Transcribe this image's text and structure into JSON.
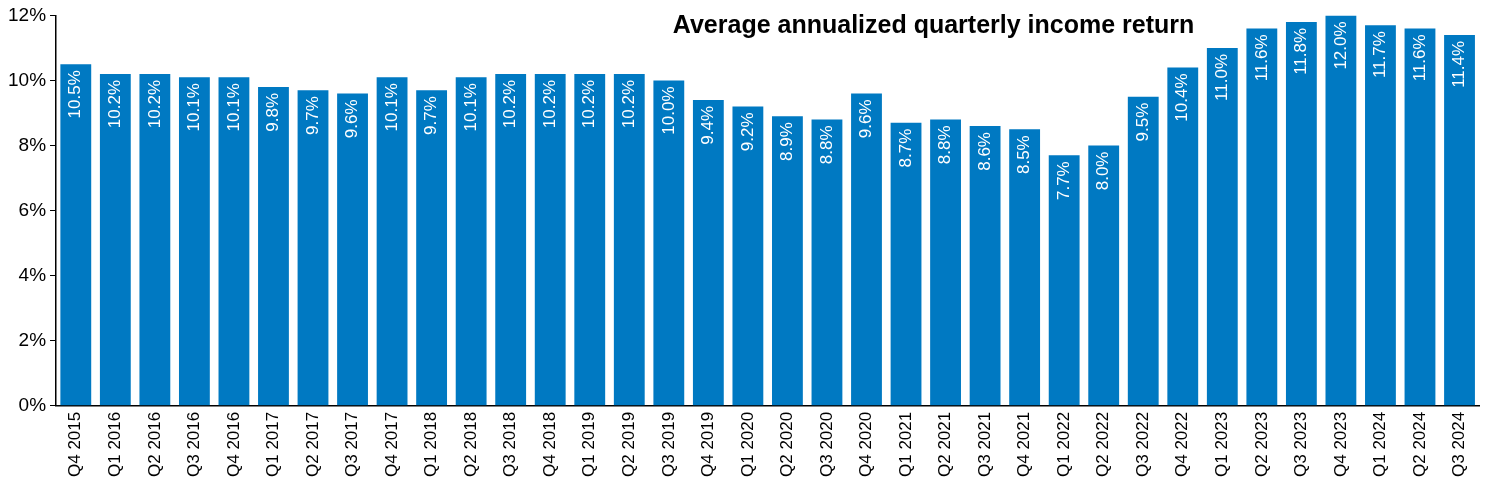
{
  "chart_data": {
    "type": "bar",
    "title": "Average annualized quarterly income return",
    "categories": [
      "Q4 2015",
      "Q1 2016",
      "Q2 2016",
      "Q3 2016",
      "Q4 2016",
      "Q1 2017",
      "Q2 2017",
      "Q3 2017",
      "Q4 2017",
      "Q1 2018",
      "Q2 2018",
      "Q3 2018",
      "Q4 2018",
      "Q1 2019",
      "Q2 2019",
      "Q3 2019",
      "Q4 2019",
      "Q1 2020",
      "Q2 2020",
      "Q3 2020",
      "Q4 2020",
      "Q1 2021",
      "Q2 2021",
      "Q3 2021",
      "Q4 2021",
      "Q1 2022",
      "Q2 2022",
      "Q3 2022",
      "Q4 2022",
      "Q1 2023",
      "Q2 2023",
      "Q3 2023",
      "Q4 2023",
      "Q1 2024",
      "Q2 2024",
      "Q3 2024"
    ],
    "values": [
      10.5,
      10.2,
      10.2,
      10.1,
      10.1,
      9.8,
      9.7,
      9.6,
      10.1,
      9.7,
      10.1,
      10.2,
      10.2,
      10.2,
      10.2,
      10.0,
      9.4,
      9.2,
      8.9,
      8.8,
      9.6,
      8.7,
      8.8,
      8.6,
      8.5,
      7.7,
      8.0,
      9.5,
      10.4,
      11.0,
      11.6,
      11.8,
      12.0,
      11.7,
      11.6,
      11.4
    ],
    "value_labels": [
      "10.5%",
      "10.2%",
      "10.2%",
      "10.1%",
      "10.1%",
      "9.8%",
      "9.7%",
      "9.6%",
      "10.1%",
      "9.7%",
      "10.1%",
      "10.2%",
      "10.2%",
      "10.2%",
      "10.2%",
      "10.0%",
      "9.4%",
      "9.2%",
      "8.9%",
      "8.8%",
      "9.6%",
      "8.7%",
      "8.8%",
      "8.6%",
      "8.5%",
      "7.7%",
      "8.0%",
      "9.5%",
      "10.4%",
      "11.0%",
      "11.6%",
      "11.8%",
      "12.0%",
      "11.7%",
      "11.6%",
      "11.4%"
    ],
    "color": "#0079c2",
    "ylim": [
      0,
      12
    ],
    "yticks": [
      {
        "value": 0,
        "label": "0%"
      },
      {
        "value": 2,
        "label": "2%"
      },
      {
        "value": 4,
        "label": "4%"
      },
      {
        "value": 6,
        "label": "6%"
      },
      {
        "value": 8,
        "label": "8%"
      },
      {
        "value": 10,
        "label": "10%"
      },
      {
        "value": 12,
        "label": "12%"
      }
    ],
    "grid": false,
    "legend": false
  }
}
